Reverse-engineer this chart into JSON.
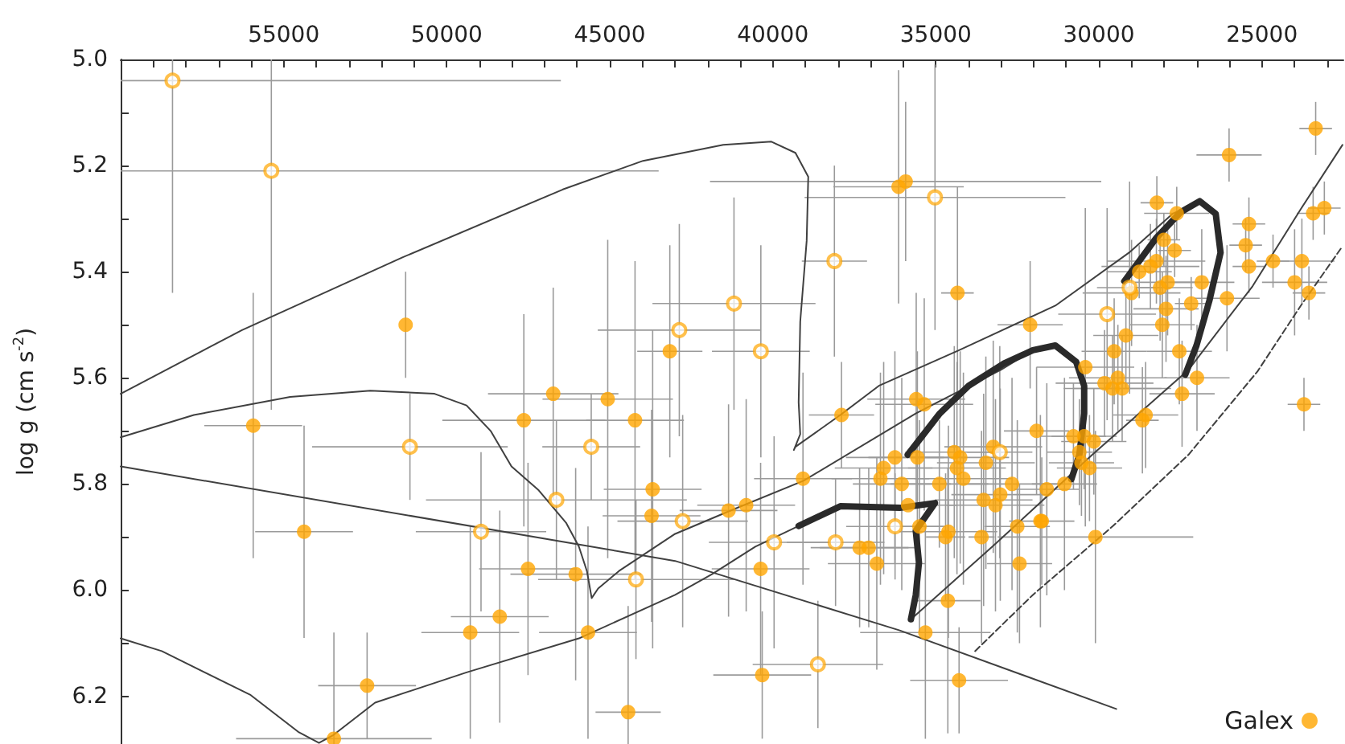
{
  "chart_data": {
    "type": "scatter",
    "ylabel": "log g (cm s$^{-2}$)",
    "xlim": [
      60000,
      22500
    ],
    "ylim": [
      6.29,
      5.0
    ],
    "xticks": [
      {
        "value": 59000,
        "label": null
      },
      {
        "value": 58000,
        "label": null
      },
      {
        "value": 57000,
        "label": null
      },
      {
        "value": 56000,
        "label": null
      },
      55000,
      {
        "value": 54000,
        "label": null
      },
      {
        "value": 53000,
        "label": null
      },
      {
        "value": 52000,
        "label": null
      },
      {
        "value": 51000,
        "label": null
      },
      50000,
      {
        "value": 49000,
        "label": null
      },
      {
        "value": 48000,
        "label": null
      },
      {
        "value": 47000,
        "label": null
      },
      {
        "value": 46000,
        "label": null
      },
      45000,
      {
        "value": 44000,
        "label": null
      },
      {
        "value": 43000,
        "label": null
      },
      {
        "value": 42000,
        "label": null
      },
      {
        "value": 41000,
        "label": null
      },
      40000,
      {
        "value": 39000,
        "label": null
      },
      {
        "value": 38000,
        "label": null
      },
      {
        "value": 37000,
        "label": null
      },
      {
        "value": 36000,
        "label": null
      },
      35000,
      {
        "value": 34000,
        "label": null
      },
      {
        "value": 33000,
        "label": null
      },
      {
        "value": 32000,
        "label": null
      },
      {
        "value": 31000,
        "label": null
      },
      30000,
      {
        "value": 29000,
        "label": null
      },
      {
        "value": 28000,
        "label": null
      },
      {
        "value": 27000,
        "label": null
      },
      {
        "value": 26000,
        "label": null
      },
      25000,
      {
        "value": 24000,
        "label": null
      },
      {
        "value": 23000,
        "label": null
      }
    ],
    "yticks": [
      {
        "value": 5.0,
        "label": "5.0"
      },
      {
        "value": 5.1,
        "label": null
      },
      {
        "value": 5.2,
        "label": "5.2"
      },
      {
        "value": 5.3,
        "label": null
      },
      {
        "value": 5.4,
        "label": "5.4"
      },
      {
        "value": 5.5,
        "label": null
      },
      {
        "value": 5.6,
        "label": "5.6"
      },
      {
        "value": 5.7,
        "label": null
      },
      {
        "value": 5.8,
        "label": "5.8"
      },
      {
        "value": 5.9,
        "label": null
      },
      {
        "value": 6.0,
        "label": "6.0"
      },
      {
        "value": 6.1,
        "label": null
      },
      {
        "value": 6.2,
        "label": "6.2"
      }
    ],
    "grid": false,
    "legend": "bottom right",
    "marker": "circle",
    "series": [
      {
        "name": "Galex",
        "color": "#ffa500",
        "x": [
          51260,
          55935,
          54375,
          47635,
          46734,
          45062,
          44225,
          43684,
          43718,
          47507,
          46046,
          48373,
          49278,
          45667,
          52442,
          53460,
          44436,
          43158,
          36142,
          35925,
          34336,
          32107,
          30415,
          26006,
          28221,
          27611,
          28006,
          27675,
          28235,
          28418,
          28762,
          25397,
          25496,
          25397,
          24658,
          23773,
          23428,
          23084,
          23350,
          23996,
          23557,
          26844,
          26070,
          27168,
          28997,
          28122,
          27891,
          27940,
          28054,
          29170,
          29530,
          27532,
          29825,
          29580,
          29285,
          29416,
          27448,
          26990,
          23709,
          28565,
          28664,
          37893,
          35601,
          35355,
          31910,
          39074,
          41357,
          40816,
          40373,
          36255,
          35566,
          36599,
          36698,
          36044,
          34892,
          34434,
          34252,
          34351,
          34154,
          33465,
          33239,
          32663,
          33534,
          33023,
          33170,
          35850,
          35502,
          34614,
          34700,
          33598,
          37337,
          37057,
          36810,
          32501,
          32433,
          31750,
          31792,
          31596,
          31054,
          30779,
          30450,
          30154,
          30597,
          30533,
          30287,
          30105,
          34631,
          35320,
          40324,
          34287
        ],
        "values": [
          5.5,
          5.69,
          5.89,
          5.68,
          5.63,
          5.64,
          5.68,
          5.81,
          5.86,
          5.96,
          5.97,
          6.05,
          6.08,
          6.08,
          6.18,
          6.28,
          6.23,
          5.55,
          5.24,
          5.23,
          5.44,
          5.5,
          5.58,
          5.18,
          5.27,
          5.29,
          5.34,
          5.36,
          5.38,
          5.39,
          5.4,
          5.31,
          5.35,
          5.39,
          5.38,
          5.38,
          5.29,
          5.28,
          5.13,
          5.42,
          5.44,
          5.42,
          5.45,
          5.46,
          5.44,
          5.43,
          5.42,
          5.47,
          5.5,
          5.52,
          5.55,
          5.55,
          5.61,
          5.62,
          5.62,
          5.6,
          5.63,
          5.6,
          5.65,
          5.67,
          5.68,
          5.67,
          5.64,
          5.65,
          5.7,
          5.79,
          5.85,
          5.84,
          5.96,
          5.75,
          5.75,
          5.77,
          5.79,
          5.8,
          5.8,
          5.74,
          5.75,
          5.77,
          5.79,
          5.76,
          5.73,
          5.8,
          5.83,
          5.82,
          5.84,
          5.84,
          5.88,
          5.89,
          5.9,
          5.9,
          5.92,
          5.92,
          5.95,
          5.88,
          5.95,
          5.87,
          5.87,
          5.81,
          5.8,
          5.71,
          5.71,
          5.72,
          5.74,
          5.76,
          5.77,
          5.9,
          6.02,
          6.08,
          6.16,
          6.17
        ],
        "errors": [
          0.1,
          0.25,
          0.2,
          0.2,
          0.2,
          0.3,
          0.3,
          0.3,
          0.2,
          0.2,
          0.2,
          0.2,
          0.2,
          0.2,
          0.1,
          [
            6.08,
            6.29
          ],
          [
            6.03,
            6.29
          ],
          0.2,
          0.22,
          0.15,
          0.2,
          0.12,
          0.3,
          0.05,
          0.05,
          0.05,
          0.05,
          0.05,
          0.08,
          0.08,
          0.05,
          0.05,
          0.05,
          0.05,
          0.05,
          0.08,
          0.05,
          0.05,
          0.05,
          0.1,
          0.05,
          0.1,
          0.1,
          0.05,
          0.1,
          0.1,
          0.1,
          0.1,
          0.1,
          0.1,
          0.1,
          0.1,
          0.1,
          0.1,
          0.1,
          0.1,
          0.1,
          0.1,
          0.05,
          0.1,
          0.1,
          0.1,
          0.2,
          0.2,
          0.12,
          0.2,
          0.2,
          0.2,
          0.2,
          0.2,
          0.2,
          0.2,
          0.2,
          0.2,
          0.12,
          0.2,
          0.2,
          0.2,
          0.2,
          0.2,
          0.2,
          0.2,
          0.2,
          0.2,
          0.2,
          null,
          0.2,
          0.2,
          0.12,
          0.2,
          0.15,
          0.15,
          0.2,
          0.2,
          0.15,
          0.12,
          0.2,
          0.2,
          0.2,
          0.1,
          0.1,
          0.1,
          0.1,
          0.1,
          0.1,
          0.2,
          0.25,
          0.2,
          0.12,
          0.1
        ],
        "xerrors": [
          null,
          1500,
          1500,
          2500,
          2000,
          2000,
          1500,
          1500,
          1500,
          1500,
          2000,
          1500,
          1500,
          1500,
          1500,
          3000,
          1000,
          1000,
          2000,
          6000,
          500,
          1000,
          1500,
          1000,
          500,
          1000,
          500,
          500,
          1500,
          1500,
          1000,
          500,
          500,
          500,
          500,
          1000,
          500,
          500,
          500,
          1000,
          500,
          1000,
          1000,
          500,
          1500,
          1000,
          1000,
          1000,
          1000,
          1000,
          1000,
          1000,
          1500,
          1500,
          1500,
          1500,
          1000,
          1000,
          500,
          1000,
          500,
          1000,
          1500,
          1500,
          1000,
          1500,
          1500,
          1500,
          1500,
          1500,
          1500,
          1500,
          1500,
          1500,
          1500,
          1500,
          1500,
          1500,
          1500,
          1500,
          1500,
          1500,
          1500,
          1500,
          1500,
          1500,
          800,
          1500,
          600,
          400,
          1500,
          1500,
          1500,
          1000,
          1000,
          1000,
          null,
          1000,
          1000,
          1000,
          1000,
          1000,
          1000,
          1000,
          1000,
          3000,
          1000,
          2000,
          1500,
          1500
        ]
      },
      {
        "color": "#ffa500",
        "x": [
          58410,
          55379,
          51128,
          45568,
          46636,
          48948,
          44196,
          35025,
          38110,
          41190,
          42867,
          40366,
          29746,
          29057,
          42764,
          39960,
          38075,
          36250,
          33038,
          38616
        ],
        "values": [
          5.04,
          5.21,
          5.73,
          5.73,
          5.83,
          5.89,
          5.98,
          5.26,
          5.38,
          5.46,
          5.51,
          5.55,
          5.48,
          5.43,
          5.87,
          5.91,
          5.91,
          5.88,
          5.74,
          6.14
        ],
        "errors": [
          [
            5.0,
            5.44
          ],
          [
            5.0,
            5.66
          ],
          0.1,
          0.1,
          0.15,
          0.15,
          0.15,
          0.25,
          0.18,
          0.2,
          0.2,
          0.2,
          0.2,
          0.2,
          0.2,
          0.2,
          0.12,
          0.1,
          0.2,
          0.12
        ],
        "xerrors": [
          [
            46500,
            60000
          ],
          [
            43500,
            60000
          ],
          3000,
          1500,
          4000,
          2000,
          3000,
          4000,
          1000,
          2500,
          2500,
          1500,
          1500,
          1000,
          2000,
          2000,
          1500,
          1500,
          1000,
          2000
        ]
      },
      {
        "type": "line",
        "marker": "none",
        "color": "#404040",
        "line_style": "solid",
        "x": [
          60000,
          56279,
          51359,
          46439,
          43979,
          41519,
          40043,
          39305,
          38912,
          38961,
          39158,
          39207,
          39158,
          39354,
          39305,
          37928,
          36747,
          34287,
          31335,
          29072,
          27743,
          26907
        ],
        "values": [
          5.63,
          5.51,
          5.373,
          5.245,
          5.191,
          5.161,
          5.155,
          5.176,
          5.221,
          5.342,
          5.494,
          5.646,
          5.706,
          5.736,
          5.73,
          5.67,
          5.615,
          5.548,
          5.464,
          5.364,
          5.291,
          5.267
        ]
      },
      {
        "type": "line",
        "marker": "none",
        "color": "#404040",
        "line_style": "solid",
        "x": [
          60000,
          57755,
          54803,
          52343,
          50375,
          49391,
          48653,
          48014,
          47177,
          46341,
          45947,
          45701,
          45554,
          45357,
          44717,
          42995,
          41371,
          39059,
          35615,
          33008,
          32024
        ],
        "values": [
          5.712,
          5.67,
          5.636,
          5.624,
          5.63,
          5.652,
          5.7,
          5.767,
          5.812,
          5.873,
          5.918,
          5.964,
          6.015,
          5.997,
          5.964,
          5.894,
          5.852,
          5.794,
          5.667,
          5.585,
          5.548
        ]
      },
      {
        "type": "line",
        "marker": "none",
        "color": "#404040",
        "line_style": "solid",
        "x": [
          60000,
          58739,
          56033,
          54557,
          53918,
          53475,
          52196,
          49391,
          45947,
          42995,
          41863,
          40535,
          39207
        ],
        "values": [
          6.091,
          6.115,
          6.197,
          6.267,
          6.288,
          6.273,
          6.212,
          6.155,
          6.091,
          6.009,
          5.97,
          5.918,
          5.879
        ]
      },
      {
        "type": "line",
        "marker": "none",
        "color": "#404040",
        "line_style": "solid",
        "x": [
          60000,
          42995,
          36107,
          29465
        ],
        "values": [
          5.767,
          5.945,
          6.076,
          6.224
        ]
      },
      {
        "type": "line",
        "marker": "none",
        "color": "#404040",
        "line_style": "solid",
        "x": [
          35763,
          33155,
          30203,
          27251,
          25283,
          23807,
          22528
        ],
        "values": [
          6.055,
          5.912,
          5.745,
          5.585,
          5.427,
          5.282,
          5.161
        ]
      },
      {
        "type": "line",
        "marker": "none",
        "color": "#404040",
        "line_style": "dashed",
        "x": [
          33795,
          32024,
          29564,
          27251,
          25136,
          23807,
          22528
        ],
        "values": [
          6.115,
          6.009,
          5.879,
          5.745,
          5.588,
          5.464,
          5.352
        ]
      },
      {
        "type": "line",
        "marker": "none",
        "color": "#2a2a2a",
        "line_style": "solid",
        "x": [
          39207,
          37928,
          36107,
          35027,
          35615,
          35517,
          35615,
          35763
        ],
        "values": [
          5.879,
          5.842,
          5.845,
          5.836,
          5.888,
          5.948,
          6.009,
          6.055
        ]
      },
      {
        "type": "line",
        "marker": "none",
        "color": "#2a2a2a",
        "line_style": "solid",
        "x": [
          35861,
          34877,
          33992,
          32909,
          32024,
          31335,
          30695,
          30450,
          30450,
          30597,
          30843
        ],
        "values": [
          5.745,
          5.667,
          5.615,
          5.573,
          5.548,
          5.539,
          5.57,
          5.615,
          5.667,
          5.745,
          5.791
        ]
      },
      {
        "type": "line",
        "marker": "none",
        "color": "#2a2a2a",
        "line_style": "solid",
        "x": [
          29219,
          28235,
          27497,
          26907,
          26415,
          26267,
          26612,
          27005,
          27350
        ],
        "values": [
          5.418,
          5.336,
          5.288,
          5.267,
          5.291,
          5.364,
          5.455,
          5.539,
          5.594
        ]
      }
    ]
  }
}
